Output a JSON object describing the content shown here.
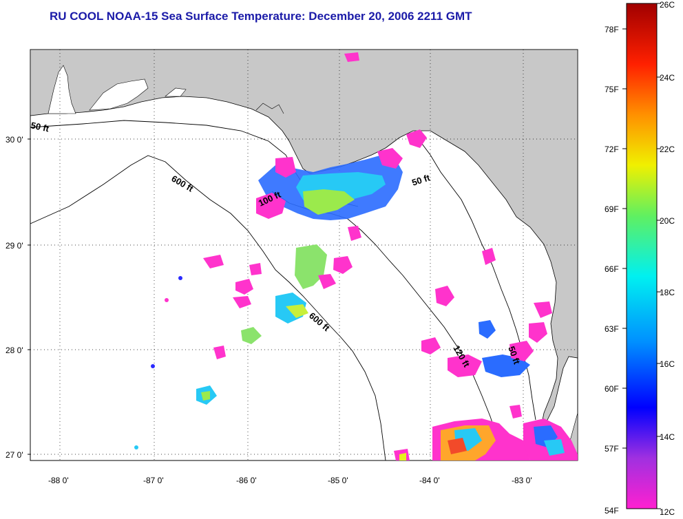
{
  "title": "RU COOL  NOAA-15  Sea Surface Temperature:  December 20, 2006 2211 GMT",
  "y_ticks": [
    "30 0'",
    "29 0'",
    "28 0'",
    "27 0'"
  ],
  "x_ticks": [
    "-88 0'",
    "-87 0'",
    "-86 0'",
    "-85 0'",
    "-84 0'",
    "-83 0'"
  ],
  "contours": [
    "50 ft",
    "600 ft",
    "50 ft",
    "100 ft",
    "600 ft",
    "120 ft",
    "50 ft"
  ],
  "colorbar": {
    "f_labels": [
      "78F",
      "75F",
      "72F",
      "69F",
      "66F",
      "63F",
      "60F",
      "57F",
      "54F"
    ],
    "c_labels": [
      "26C",
      "24C",
      "22C",
      "20C",
      "18C",
      "16C",
      "14C",
      "12C"
    ]
  },
  "colors": {
    "land": "#c8c8c8",
    "ocean": "#ffffff",
    "title": "#1a1aa8"
  }
}
